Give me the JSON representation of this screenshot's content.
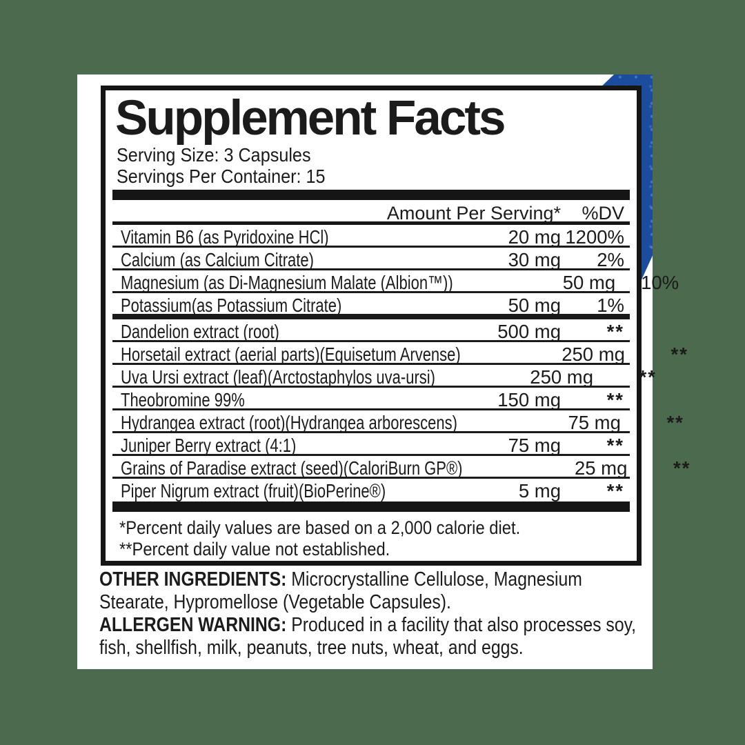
{
  "label": {
    "title": "Supplement Facts",
    "serving_size": "Serving Size: 3 Capsules",
    "servings_per_container": "Servings Per Container: 15",
    "columns": {
      "amount": "Amount Per Serving*",
      "dv": "%DV"
    },
    "rows": [
      {
        "name": "Vitamin B6 (as Pyridoxine HCl)",
        "amount": "20 mg",
        "dv": "1200%"
      },
      {
        "name": "Calcium (as Calcium Citrate)",
        "amount": "30 mg",
        "dv": "2%"
      },
      {
        "name": "Magnesium (as Di-Magnesium Malate (Albion™))",
        "amount": "50 mg",
        "dv": "10%"
      },
      {
        "name": "Potassium(as Potassium Citrate)",
        "amount": "50 mg",
        "dv": "1%"
      },
      {
        "name": "Dandelion extract (root)",
        "amount": "500 mg",
        "dv": "**"
      },
      {
        "name": "Horsetail extract (aerial parts)(Equisetum Arvense)",
        "amount": "250 mg",
        "dv": "**"
      },
      {
        "name": "Uva Ursi extract (leaf)(Arctostaphylos uva-ursi)",
        "amount": "250 mg",
        "dv": "**"
      },
      {
        "name": "Theobromine 99%",
        "amount": "150 mg",
        "dv": "**"
      },
      {
        "name": "Hydrangea extract (root)(Hydrangea arborescens)",
        "amount": "75 mg",
        "dv": "**"
      },
      {
        "name": "Juniper Berry extract (4:1)",
        "amount": "75 mg",
        "dv": "**"
      },
      {
        "name": "Grains of Paradise extract (seed)(CaloriBurn GP®)",
        "amount": "25 mg",
        "dv": "**"
      },
      {
        "name": "Piper Nigrum extract (fruit)(BioPerine®)",
        "amount": "5 mg",
        "dv": "**"
      }
    ],
    "footnotes": [
      "*Percent daily values are based on a 2,000 calorie diet.",
      "**Percent daily value not established."
    ],
    "other_ingredients": {
      "label": "OTHER INGREDIENTS:",
      "text": " Microcrystalline Cellulose, Magnesium Stearate, Hypromellose (Vegetable Capsules)."
    },
    "allergen_warning": {
      "label": "ALLERGEN WARNING:",
      "text": " Produced in a facility that also processes soy, fish, shellfish, milk, peanuts, tree nuts, wheat, and eggs."
    },
    "colors": {
      "background": "#4c6a4e",
      "label_blue": "#1c4c9e",
      "text": "#1b1b1b"
    }
  }
}
